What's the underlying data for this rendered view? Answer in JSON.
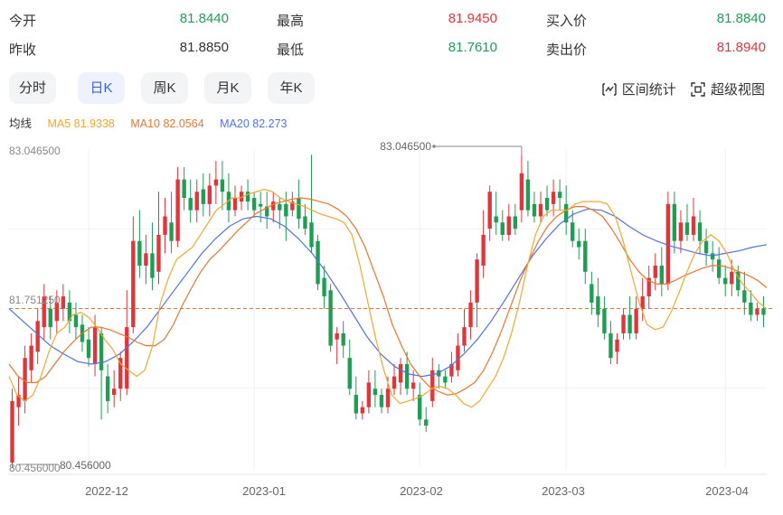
{
  "quote": {
    "open_label": "今开",
    "open_value": "81.8440",
    "high_label": "最高",
    "high_value": "81.9450",
    "bid_label": "买入价",
    "bid_value": "81.8840",
    "prev_close_label": "昨收",
    "prev_close_value": "81.8850",
    "low_label": "最低",
    "low_value": "81.7610",
    "ask_label": "卖出价",
    "ask_value": "81.8940"
  },
  "tabs": [
    {
      "label": "分时",
      "active": false
    },
    {
      "label": "日K",
      "active": true
    },
    {
      "label": "周K",
      "active": false
    },
    {
      "label": "月K",
      "active": false
    },
    {
      "label": "年K",
      "active": false
    }
  ],
  "tools": {
    "interval_stats": "区间统计",
    "super_view": "超级视图"
  },
  "ma_legend": {
    "title": "均线",
    "ma5": "MA5 81.9338",
    "ma10": "MA10 82.0564",
    "ma20": "MA20 82.273"
  },
  "colors": {
    "up": "#e0353b",
    "down": "#1e9d53",
    "ma5": "#f2a730",
    "ma10": "#f0742a",
    "ma20": "#4f73e3",
    "ref_line": "#e8733a",
    "active_tab": "#3860e4"
  },
  "chart_data": {
    "type": "candlestick",
    "y_max_label": "83.046500",
    "y_min_label": "80.456000",
    "y_ref_label": "81.751250",
    "ylim": [
      80.456,
      83.0465
    ],
    "ref_price": 81.75125,
    "high_annotation": "83.046500",
    "low_annotation": "80.456000",
    "x_ticks": [
      "2022-12",
      "2023-01",
      "2023-02",
      "2023-03",
      "2023-04"
    ],
    "candles": [
      [
        80.5,
        81.0,
        80.46,
        81.1
      ],
      [
        80.95,
        81.05,
        80.8,
        81.2
      ],
      [
        81.0,
        81.35,
        80.9,
        81.45
      ],
      [
        81.25,
        81.45,
        81.15,
        81.55
      ],
      [
        81.4,
        81.65,
        81.3,
        81.75
      ],
      [
        81.6,
        81.85,
        81.5,
        81.95
      ],
      [
        81.75,
        81.6,
        81.5,
        81.85
      ],
      [
        81.65,
        81.8,
        81.55,
        81.9
      ],
      [
        81.75,
        81.85,
        81.65,
        81.95
      ],
      [
        81.8,
        81.65,
        81.55,
        81.9
      ],
      [
        81.7,
        81.6,
        81.5,
        81.8
      ],
      [
        81.62,
        81.48,
        81.4,
        81.7
      ],
      [
        81.5,
        81.35,
        81.28,
        81.6
      ],
      [
        81.3,
        81.6,
        81.2,
        81.7
      ],
      [
        81.55,
        81.25,
        80.85,
        81.6
      ],
      [
        81.2,
        81.0,
        80.9,
        81.3
      ],
      [
        81.05,
        81.1,
        80.95,
        81.25
      ],
      [
        81.1,
        81.35,
        81.0,
        81.4
      ],
      [
        81.1,
        81.6,
        81.05,
        81.9
      ],
      [
        81.6,
        82.3,
        81.55,
        82.5
      ],
      [
        82.3,
        82.1,
        82.0,
        82.55
      ],
      [
        82.1,
        82.2,
        81.95,
        82.35
      ],
      [
        82.2,
        82.0,
        81.9,
        82.45
      ],
      [
        82.05,
        82.35,
        81.95,
        82.7
      ],
      [
        82.35,
        82.5,
        82.2,
        82.65
      ],
      [
        82.45,
        82.3,
        82.2,
        82.7
      ],
      [
        82.3,
        82.8,
        82.25,
        82.9
      ],
      [
        82.8,
        82.65,
        82.55,
        82.9
      ],
      [
        82.65,
        82.55,
        82.45,
        82.8
      ],
      [
        82.55,
        82.7,
        82.45,
        82.8
      ],
      [
        82.72,
        82.6,
        82.5,
        82.85
      ],
      [
        82.6,
        82.75,
        82.5,
        82.85
      ],
      [
        82.75,
        82.8,
        82.6,
        82.95
      ],
      [
        82.8,
        82.7,
        82.55,
        82.95
      ],
      [
        82.7,
        82.55,
        82.45,
        82.85
      ],
      [
        82.55,
        82.65,
        82.5,
        82.75
      ],
      [
        82.62,
        82.7,
        82.55,
        82.75
      ],
      [
        82.7,
        82.62,
        82.55,
        82.8
      ],
      [
        82.65,
        82.55,
        82.5,
        82.7
      ],
      [
        82.6,
        82.58,
        82.45,
        82.7
      ],
      [
        82.58,
        82.5,
        82.4,
        82.7
      ],
      [
        82.55,
        82.62,
        82.45,
        82.7
      ],
      [
        82.6,
        82.55,
        82.4,
        82.65
      ],
      [
        82.6,
        82.5,
        82.3,
        82.7
      ],
      [
        82.55,
        82.62,
        82.5,
        82.7
      ],
      [
        82.65,
        82.48,
        82.4,
        82.8
      ],
      [
        82.5,
        82.4,
        82.35,
        82.6
      ],
      [
        82.45,
        82.25,
        82.2,
        83.0
      ],
      [
        82.3,
        81.95,
        81.9,
        82.35
      ],
      [
        82.0,
        81.85,
        81.75,
        82.1
      ],
      [
        81.9,
        81.45,
        81.4,
        81.95
      ],
      [
        81.5,
        81.55,
        81.3,
        81.6
      ],
      [
        81.55,
        81.45,
        81.35,
        81.65
      ],
      [
        81.35,
        81.1,
        81.05,
        81.5
      ],
      [
        81.05,
        80.9,
        80.85,
        81.2
      ],
      [
        80.9,
        80.95,
        80.85,
        81.0
      ],
      [
        80.95,
        81.15,
        80.9,
        81.25
      ],
      [
        81.1,
        81.05,
        80.95,
        81.25
      ],
      [
        81.05,
        80.95,
        80.9,
        81.1
      ],
      [
        80.95,
        81.1,
        80.9,
        81.2
      ],
      [
        81.1,
        81.2,
        81.05,
        81.3
      ],
      [
        81.15,
        81.3,
        81.05,
        81.35
      ],
      [
        81.3,
        81.1,
        81.05,
        81.4
      ],
      [
        81.1,
        81.15,
        81.0,
        81.25
      ],
      [
        81.05,
        80.85,
        80.8,
        81.15
      ],
      [
        80.85,
        80.8,
        80.75,
        80.95
      ],
      [
        81.0,
        81.25,
        80.95,
        81.35
      ],
      [
        81.25,
        81.2,
        81.1,
        81.3
      ],
      [
        81.2,
        81.15,
        81.1,
        81.25
      ],
      [
        81.2,
        81.3,
        81.15,
        81.4
      ],
      [
        81.25,
        81.45,
        81.2,
        81.55
      ],
      [
        81.45,
        81.6,
        81.4,
        81.75
      ],
      [
        81.6,
        81.8,
        81.5,
        81.9
      ],
      [
        81.8,
        82.15,
        81.6,
        82.2
      ],
      [
        82.1,
        82.35,
        82.0,
        82.55
      ],
      [
        82.4,
        82.7,
        82.3,
        82.75
      ],
      [
        82.5,
        82.45,
        82.35,
        82.7
      ],
      [
        82.45,
        82.35,
        82.3,
        82.55
      ],
      [
        82.35,
        82.5,
        82.3,
        82.6
      ],
      [
        82.5,
        82.4,
        82.35,
        82.6
      ],
      [
        82.55,
        82.85,
        82.45,
        83.0
      ],
      [
        82.8,
        82.55,
        82.5,
        82.95
      ],
      [
        82.6,
        82.5,
        82.45,
        82.7
      ],
      [
        82.5,
        82.6,
        82.45,
        82.7
      ],
      [
        82.65,
        82.55,
        82.5,
        82.75
      ],
      [
        82.6,
        82.7,
        82.5,
        82.8
      ],
      [
        82.7,
        82.65,
        82.55,
        82.8
      ],
      [
        82.6,
        82.45,
        82.35,
        82.75
      ],
      [
        82.45,
        82.3,
        82.25,
        82.55
      ],
      [
        82.3,
        82.25,
        82.15,
        82.4
      ],
      [
        82.3,
        82.05,
        81.95,
        82.4
      ],
      [
        81.95,
        81.8,
        81.7,
        82.05
      ],
      [
        81.85,
        81.7,
        81.6,
        82.0
      ],
      [
        81.75,
        81.55,
        81.5,
        81.85
      ],
      [
        81.55,
        81.35,
        81.3,
        81.65
      ],
      [
        81.4,
        81.5,
        81.3,
        81.55
      ],
      [
        81.55,
        81.7,
        81.5,
        81.75
      ],
      [
        81.7,
        81.55,
        81.5,
        81.85
      ],
      [
        81.55,
        81.75,
        81.5,
        81.85
      ],
      [
        81.75,
        81.85,
        81.65,
        82.0
      ],
      [
        81.85,
        82.0,
        81.75,
        82.1
      ],
      [
        82.0,
        82.1,
        81.9,
        82.2
      ],
      [
        82.1,
        81.95,
        81.85,
        82.25
      ],
      [
        81.95,
        82.6,
        81.9,
        82.7
      ],
      [
        82.6,
        82.3,
        82.2,
        82.7
      ],
      [
        82.3,
        82.45,
        82.2,
        82.55
      ],
      [
        82.45,
        82.35,
        82.3,
        82.6
      ],
      [
        82.35,
        82.5,
        82.3,
        82.65
      ],
      [
        82.45,
        82.3,
        82.2,
        82.55
      ],
      [
        82.3,
        82.2,
        82.1,
        82.4
      ],
      [
        82.2,
        82.15,
        82.05,
        82.3
      ],
      [
        82.15,
        82.0,
        81.95,
        82.25
      ],
      [
        82.0,
        81.95,
        81.85,
        82.1
      ],
      [
        81.95,
        82.05,
        81.85,
        82.15
      ],
      [
        82.05,
        81.9,
        81.85,
        82.1
      ],
      [
        81.9,
        81.8,
        81.7,
        82.05
      ],
      [
        81.8,
        81.7,
        81.65,
        81.9
      ],
      [
        81.7,
        81.75,
        81.65,
        81.8
      ],
      [
        81.75,
        81.7,
        81.6,
        81.85
      ]
    ],
    "ma5": [
      81.2,
      81.05,
      81.0,
      81.05,
      81.2,
      81.4,
      81.55,
      81.6,
      81.7,
      81.72,
      81.68,
      81.6,
      81.5,
      81.42,
      81.3,
      81.25,
      81.2,
      81.25,
      81.45,
      81.8,
      82.0,
      82.15,
      82.2,
      82.25,
      82.35,
      82.45,
      82.55,
      82.6,
      82.65,
      82.65,
      82.68,
      82.7,
      82.72,
      82.7,
      82.65,
      82.62,
      82.6,
      82.58,
      82.55,
      82.52,
      82.5,
      82.48,
      82.45,
      82.35,
      82.1,
      81.8,
      81.5,
      81.25,
      81.05,
      80.98,
      81.0,
      81.02,
      81.05,
      81.1,
      81.12,
      81.1,
      81.05,
      80.98,
      80.95,
      81.0,
      81.1,
      81.2,
      81.35,
      81.55,
      81.8,
      82.1,
      82.35,
      82.5,
      82.55,
      82.55,
      82.55,
      82.6,
      82.62,
      82.62,
      82.62,
      82.6,
      82.5,
      82.3,
      82.05,
      81.8,
      81.62,
      81.58,
      81.6,
      81.72,
      81.88,
      82.05,
      82.2,
      82.3,
      82.35,
      82.3,
      82.2,
      82.05,
      81.95,
      81.88,
      81.8,
      81.75
    ],
    "ma10": [
      81.3,
      81.2,
      81.15,
      81.15,
      81.2,
      81.3,
      81.4,
      81.48,
      81.55,
      81.6,
      81.6,
      81.58,
      81.55,
      81.52,
      81.48,
      81.45,
      81.45,
      81.5,
      81.62,
      81.78,
      81.92,
      82.05,
      82.15,
      82.22,
      82.3,
      82.38,
      82.45,
      82.52,
      82.56,
      82.6,
      82.62,
      82.64,
      82.65,
      82.64,
      82.62,
      82.6,
      82.56,
      82.5,
      82.4,
      82.25,
      82.05,
      81.85,
      81.62,
      81.45,
      81.3,
      81.2,
      81.12,
      81.08,
      81.05,
      81.06,
      81.1,
      81.15,
      81.25,
      81.4,
      81.58,
      81.78,
      81.98,
      82.15,
      82.3,
      82.42,
      82.5,
      82.55,
      82.58,
      82.58,
      82.55,
      82.5,
      82.4,
      82.28,
      82.15,
      82.05,
      81.98,
      81.95,
      81.95,
      81.98,
      82.02,
      82.05,
      82.08,
      82.1,
      82.1,
      82.08,
      82.05,
      82.02,
      81.98,
      81.92
    ],
    "ma20": [
      81.75,
      81.65,
      81.55,
      81.45,
      81.38,
      81.32,
      81.3,
      81.32,
      81.38,
      81.48,
      81.6,
      81.75,
      81.9,
      82.05,
      82.2,
      82.32,
      82.42,
      82.48,
      82.5,
      82.48,
      82.42,
      82.32,
      82.2,
      82.05,
      81.88,
      81.7,
      81.52,
      81.38,
      81.28,
      81.22,
      81.2,
      81.22,
      81.28,
      81.38,
      81.5,
      81.65,
      81.82,
      82.0,
      82.18,
      82.32,
      82.44,
      82.52,
      82.56,
      82.55,
      82.5,
      82.42,
      82.35,
      82.3,
      82.26,
      82.23,
      82.2,
      82.18,
      82.2,
      82.22,
      82.25,
      82.27
    ]
  }
}
